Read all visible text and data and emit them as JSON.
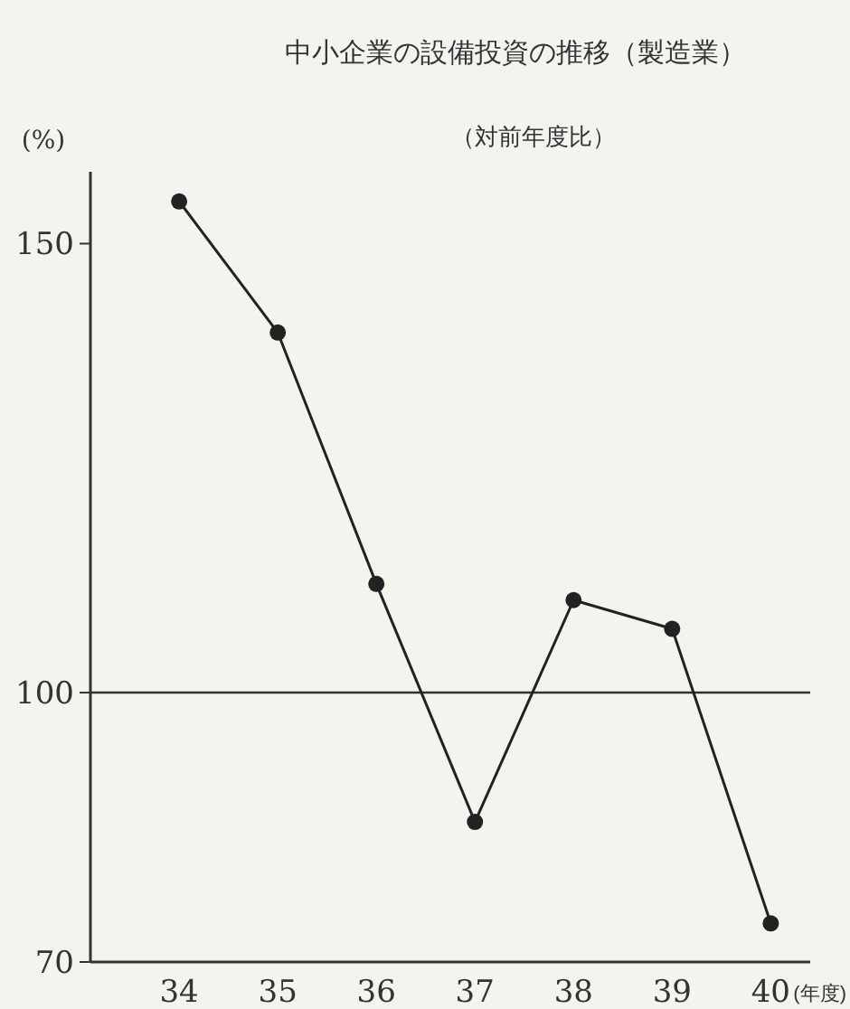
{
  "chart_data": {
    "type": "line",
    "title": "中小企業の設備投資の推移（製造業）",
    "subtitle": "（対前年度比）",
    "ylabel": "(%)",
    "xlabel": "(年度)",
    "x": [
      34,
      35,
      36,
      37,
      38,
      39,
      40
    ],
    "series": [
      {
        "color": "#222222",
        "values": [
          154.7,
          140.1,
          112.1,
          85.6,
          110.3,
          107.1,
          74.3
        ]
      }
    ],
    "xlim": [
      33.1,
      40.4
    ],
    "xticks": [
      34,
      35,
      36,
      37,
      38,
      39,
      40
    ],
    "ylim": [
      70,
      158
    ],
    "yticks": [
      70,
      100,
      150
    ],
    "ref_lines": [
      {
        "axis": "y",
        "value": 100,
        "color": "#333333"
      }
    ],
    "marker": "circle",
    "line_style": "solid",
    "grid": false
  }
}
